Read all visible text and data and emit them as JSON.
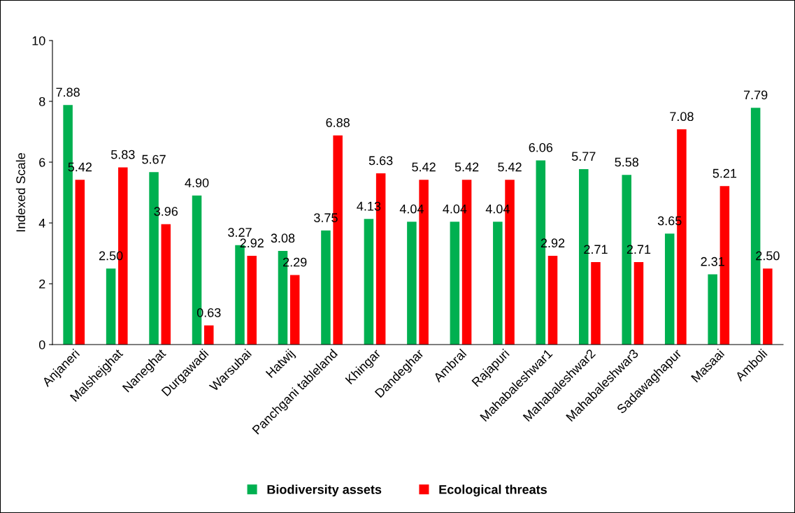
{
  "chart_data": {
    "type": "bar",
    "ylabel": "Indexed Scale",
    "categories": [
      "Anjaneri",
      "Malshejghat",
      "Naneghat",
      "Durgawadi",
      "Warsubai",
      "Hatwij",
      "Panchgani tableland",
      "Khingar",
      "Dandeghar",
      "Ambral",
      "Rajapuri",
      "Mahabaleshwar1",
      "Mahabaleshwar2",
      "Mahabaleshwar3",
      "Sadawaghapur",
      "Masaai",
      "Amboli"
    ],
    "series": [
      {
        "name": "Biodiversity assets",
        "color": "#00b050",
        "values": [
          7.88,
          2.5,
          5.67,
          4.9,
          3.27,
          3.08,
          3.75,
          4.13,
          4.04,
          4.04,
          4.04,
          6.06,
          5.77,
          5.58,
          3.65,
          2.31,
          7.79
        ],
        "value_labels": [
          "7.88",
          "2.50",
          "5.67",
          "4.90",
          "3.27",
          "3.08",
          "3.75",
          "4.13",
          "4.04",
          "4.04",
          "4.04",
          "6.06",
          "5.77",
          "5.58",
          "3.65",
          "2.31",
          "7.79"
        ]
      },
      {
        "name": "Ecological threats",
        "color": "#ff0000",
        "values": [
          5.42,
          5.83,
          3.96,
          0.63,
          2.92,
          2.29,
          6.88,
          5.63,
          5.42,
          5.42,
          5.42,
          2.92,
          2.71,
          2.71,
          7.08,
          5.21,
          2.5
        ],
        "value_labels": [
          "5.42",
          "5.83",
          "3.96",
          "0.63",
          "2.92",
          "2.29",
          "6.88",
          "5.63",
          "5.42",
          "5.42",
          "5.42",
          "2.92",
          "2.71",
          "2.71",
          "7.08",
          "5.21",
          "2.50"
        ]
      }
    ],
    "ylim": [
      0,
      10
    ],
    "yticks": [
      0,
      2,
      4,
      6,
      8,
      10
    ],
    "grid": false,
    "legend": "bottom"
  }
}
